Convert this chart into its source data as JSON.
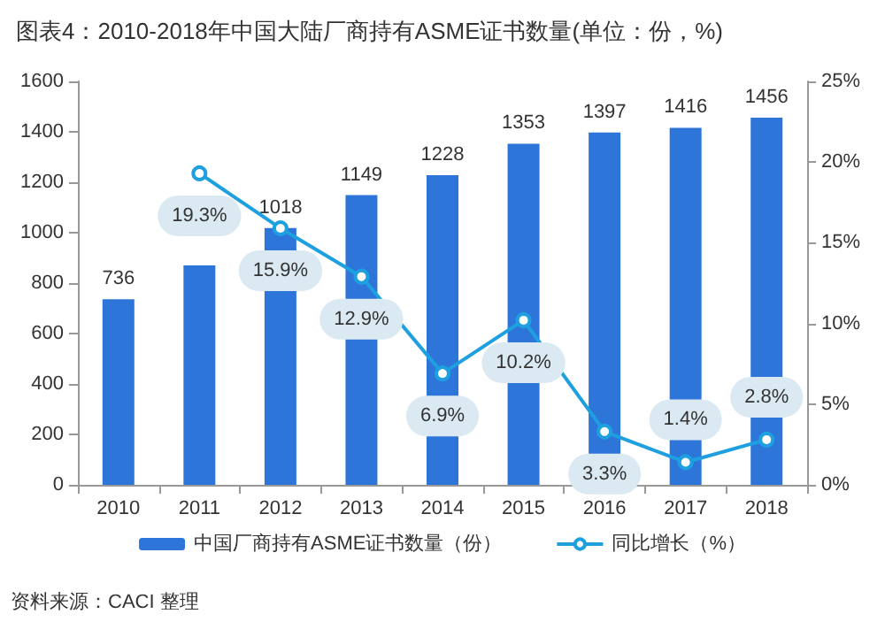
{
  "chart_data": {
    "type": "bar",
    "title": "图表4：2010-2018年中国大陆厂商持有ASME证书数量(单位：份，%)",
    "categories": [
      "2010",
      "2011",
      "2012",
      "2013",
      "2014",
      "2015",
      "2016",
      "2017",
      "2018"
    ],
    "series": [
      {
        "name": "中国厂商持有ASME证书数量（份）",
        "color": "#2e75d9",
        "values": [
          736,
          870,
          1018,
          1149,
          1228,
          1353,
          1397,
          1416,
          1456
        ],
        "value_labels": [
          "736",
          null,
          "1018",
          "1149",
          "1228",
          "1353",
          "1397",
          "1416",
          "1456"
        ]
      },
      {
        "name": "同比增长（%）",
        "type": "line",
        "axis": "y2",
        "color": "#1ea0e0",
        "marker": "circle",
        "values": [
          null,
          19.3,
          15.9,
          12.9,
          6.9,
          10.2,
          3.3,
          1.4,
          2.8
        ],
        "value_labels": [
          null,
          "19.3%",
          "15.9%",
          "12.9%",
          "6.9%",
          "10.2%",
          "3.3%",
          "1.4%",
          "2.8%"
        ]
      }
    ],
    "ylim": [
      0,
      1600
    ],
    "yticks": [
      0,
      200,
      400,
      600,
      800,
      1000,
      1200,
      1400,
      1600
    ],
    "y2lim": [
      0,
      25
    ],
    "y2ticks": [
      {
        "value": 0,
        "label": "0%"
      },
      {
        "value": 5,
        "label": "5%"
      },
      {
        "value": 10,
        "label": "10%"
      },
      {
        "value": 15,
        "label": "15%"
      },
      {
        "value": 20,
        "label": "20%"
      },
      {
        "value": 25,
        "label": "25%"
      }
    ],
    "grid": false,
    "legend": "bottom",
    "annotations": [
      "资料来源：CACI 整理"
    ]
  }
}
